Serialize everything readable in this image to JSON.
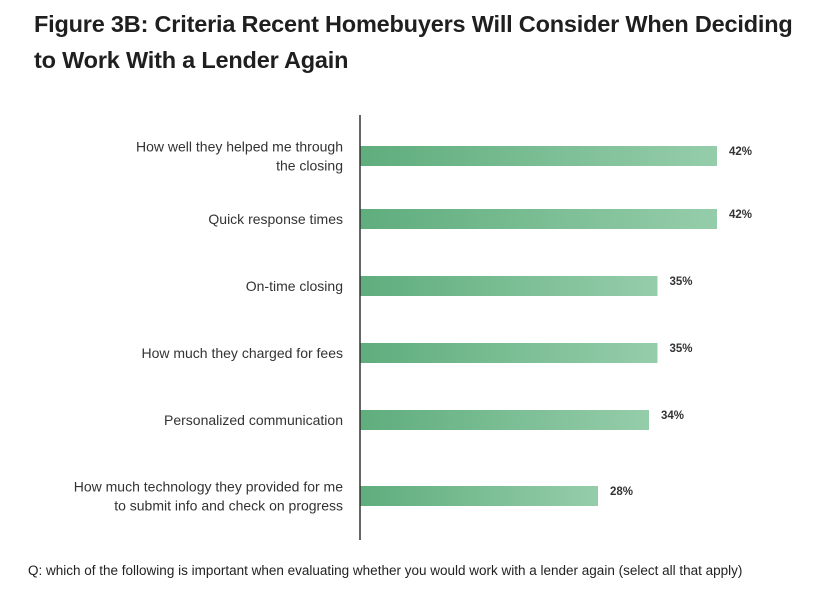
{
  "title_lines": [
    "Figure 3B: Criteria Recent Homebuyers Will Consider When Deciding",
    "to Work With a Lender Again"
  ],
  "footnote": "Q: which of the following is important when evaluating whether you would work with a lender again (select all that apply)",
  "colors": {
    "bar_start": "#5fad7d",
    "bar_end": "#95cdaa",
    "axis": "#333333"
  },
  "chart_data": {
    "type": "bar",
    "orientation": "horizontal",
    "title": "Figure 3B: Criteria Recent Homebuyers Will Consider When Deciding to Work With a Lender Again",
    "categories": [
      [
        "How well they helped me through",
        "the closing"
      ],
      [
        "Quick response times"
      ],
      [
        "On-time closing"
      ],
      [
        "How much they charged for fees"
      ],
      [
        "Personalized communication"
      ],
      [
        "How much technology they provided for me",
        "to submit info and check on progress"
      ]
    ],
    "values": [
      42,
      42,
      35,
      35,
      34,
      28
    ],
    "value_labels": [
      "42%",
      "42%",
      "35%",
      "35%",
      "34%",
      "28%"
    ],
    "unit": "%",
    "xlim": [
      0,
      42
    ],
    "grid": false,
    "legend": "none"
  }
}
